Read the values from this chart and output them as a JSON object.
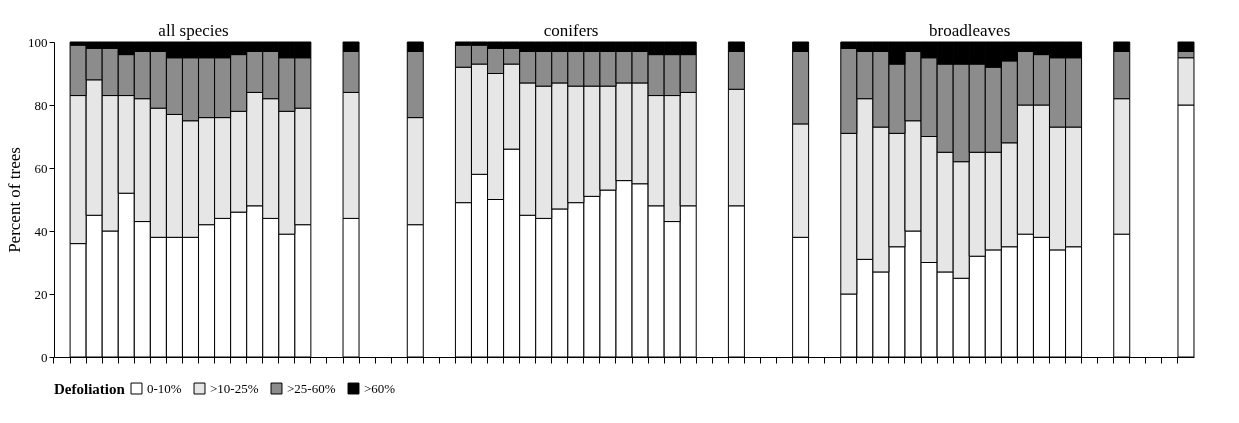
{
  "chart_data": {
    "type": "bar",
    "stacked": true,
    "ylabel": "Percent of trees",
    "legend_title": "Defoliation",
    "legend": "bottom",
    "tick_labels": "y",
    "grid": false,
    "ylim": [
      0,
      100
    ],
    "yticks": [
      0,
      20,
      40,
      60,
      80,
      100
    ],
    "annotations": [
      "all species",
      "conifers",
      "broadleaves"
    ],
    "categories": [
      null,
      null,
      null,
      null,
      null,
      null,
      null,
      null,
      null,
      null,
      null,
      null,
      null,
      null,
      null,
      null,
      null,
      null,
      null,
      null,
      null,
      null,
      null,
      null,
      null,
      null,
      null,
      null,
      null,
      null,
      null,
      null,
      null,
      null,
      null,
      null,
      null,
      null,
      null,
      null,
      null,
      null,
      null,
      null,
      null,
      null,
      null,
      null,
      null,
      null,
      null,
      null,
      null,
      null,
      null,
      null,
      null,
      null,
      null,
      null,
      null,
      null,
      null,
      null,
      null,
      null,
      null,
      null,
      null,
      null,
      null
    ],
    "series": [
      {
        "name": "0-10%",
        "color": "#ffffff",
        "values": [
          null,
          36,
          45,
          40,
          52,
          43,
          38,
          38,
          38,
          42,
          44,
          46,
          48,
          44,
          39,
          42,
          null,
          null,
          44,
          null,
          null,
          null,
          42,
          null,
          null,
          49,
          58,
          50,
          66,
          45,
          44,
          47,
          49,
          51,
          53,
          56,
          55,
          48,
          43,
          48,
          null,
          null,
          48,
          null,
          null,
          null,
          38,
          null,
          null,
          20,
          31,
          27,
          35,
          40,
          30,
          27,
          25,
          32,
          34,
          35,
          39,
          38,
          34,
          35,
          null,
          null,
          39,
          null,
          null,
          null,
          80
        ]
      },
      {
        "name": ">10-25%",
        "color": "#e6e6e6",
        "values": [
          null,
          47,
          43,
          43,
          31,
          39,
          41,
          39,
          37,
          34,
          32,
          32,
          36,
          38,
          39,
          37,
          null,
          null,
          40,
          null,
          null,
          null,
          34,
          null,
          null,
          43,
          35,
          40,
          27,
          42,
          42,
          40,
          37,
          35,
          33,
          31,
          32,
          35,
          40,
          36,
          null,
          null,
          37,
          null,
          null,
          null,
          36,
          null,
          null,
          51,
          51,
          46,
          36,
          35,
          40,
          38,
          37,
          33,
          31,
          33,
          41,
          42,
          39,
          38,
          null,
          null,
          43,
          null,
          null,
          null,
          15
        ]
      },
      {
        "name": ">25-60%",
        "color": "#8c8c8c",
        "values": [
          null,
          16,
          10,
          15,
          13,
          15,
          18,
          18,
          20,
          19,
          19,
          18,
          13,
          15,
          17,
          16,
          null,
          null,
          13,
          null,
          null,
          null,
          21,
          null,
          null,
          7,
          6,
          8,
          5,
          10,
          11,
          10,
          11,
          11,
          11,
          10,
          10,
          13,
          13,
          12,
          null,
          null,
          12,
          null,
          null,
          null,
          23,
          null,
          null,
          27,
          15,
          24,
          22,
          22,
          25,
          28,
          31,
          28,
          27,
          26,
          17,
          16,
          22,
          22,
          null,
          null,
          15,
          null,
          null,
          null,
          2
        ]
      },
      {
        "name": ">60%",
        "color": "#000000",
        "values": [
          null,
          1,
          2,
          2,
          4,
          3,
          3,
          5,
          5,
          5,
          5,
          4,
          3,
          3,
          5,
          5,
          null,
          null,
          3,
          null,
          null,
          null,
          3,
          null,
          null,
          1,
          1,
          2,
          2,
          3,
          3,
          3,
          3,
          3,
          3,
          3,
          3,
          4,
          4,
          4,
          null,
          null,
          3,
          null,
          null,
          null,
          3,
          null,
          null,
          2,
          3,
          3,
          7,
          3,
          5,
          7,
          7,
          7,
          8,
          6,
          3,
          4,
          5,
          5,
          null,
          null,
          3,
          null,
          null,
          null,
          3
        ]
      }
    ]
  }
}
